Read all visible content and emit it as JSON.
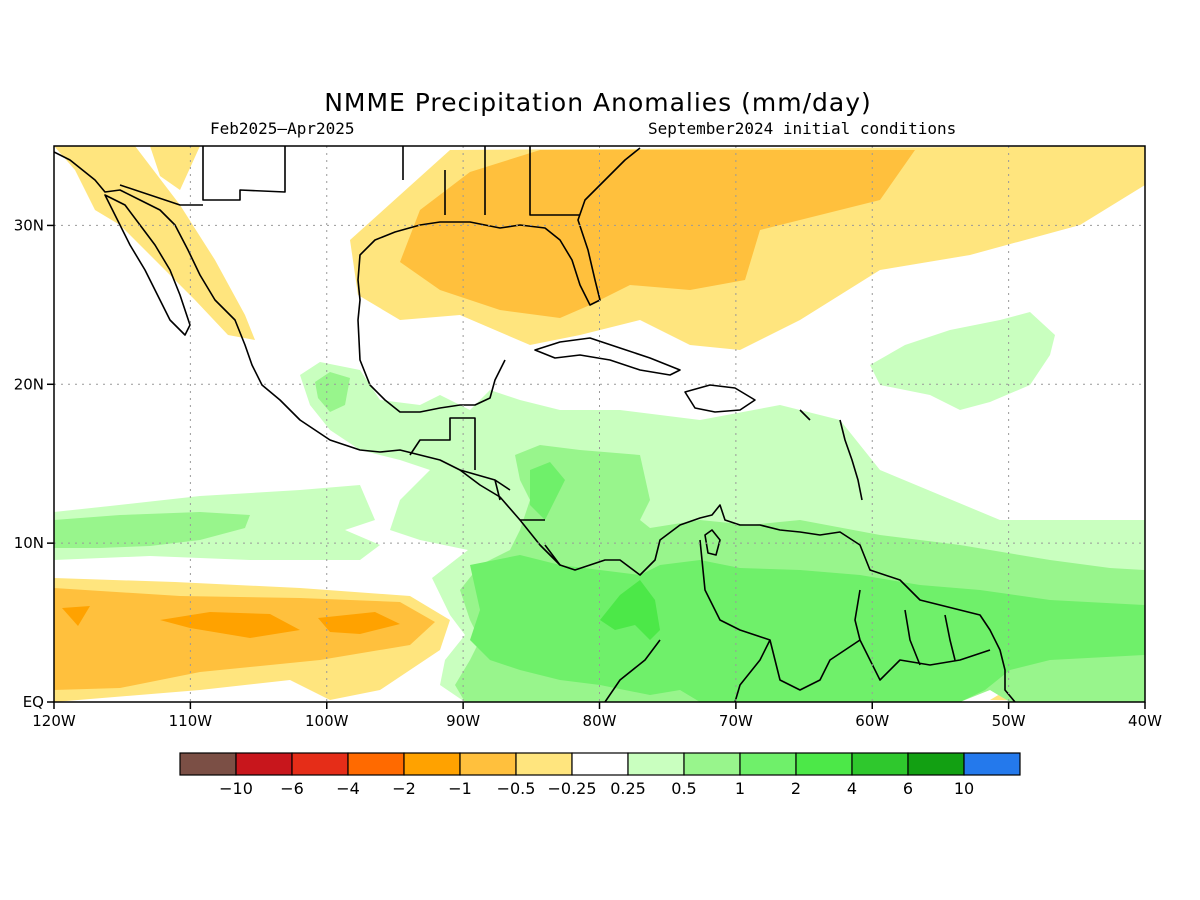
{
  "title": "NMME Precipitation Anomalies (mm/day)",
  "period": "Feb2025–Apr2025",
  "init": "September2024 initial conditions",
  "x_ticks": [
    "120W",
    "110W",
    "100W",
    "90W",
    "80W",
    "70W",
    "60W",
    "50W",
    "40W"
  ],
  "y_ticks": [
    "30N",
    "20N",
    "10N",
    "EQ"
  ],
  "colorbar": {
    "colors": [
      "#7b4f45",
      "#c8161c",
      "#e52d18",
      "#ff6a00",
      "#ffa200",
      "#ffc03d",
      "#ffe57e",
      "#ffffff",
      "#c9ffbf",
      "#98f58c",
      "#6ff06a",
      "#4ce848",
      "#2fc82d",
      "#12a012",
      "#2479ec"
    ],
    "labels": [
      "−10",
      "−6",
      "−4",
      "−2",
      "−1",
      "−0.5",
      "−0.25",
      "0.25",
      "0.5",
      "1",
      "2",
      "4",
      "6",
      "10"
    ]
  },
  "map": {
    "lon_range": [
      -120,
      -40
    ],
    "lat_range": [
      0,
      35
    ],
    "anomaly_colors": {
      "wet_light": "#c9ffbf",
      "wet_mid": "#98f58c",
      "wet_strong": "#6ff06a",
      "wet_max": "#4ce848",
      "dry_light": "#ffe57e",
      "dry_mid": "#ffc03d",
      "dry_strong": "#ffa200"
    }
  }
}
